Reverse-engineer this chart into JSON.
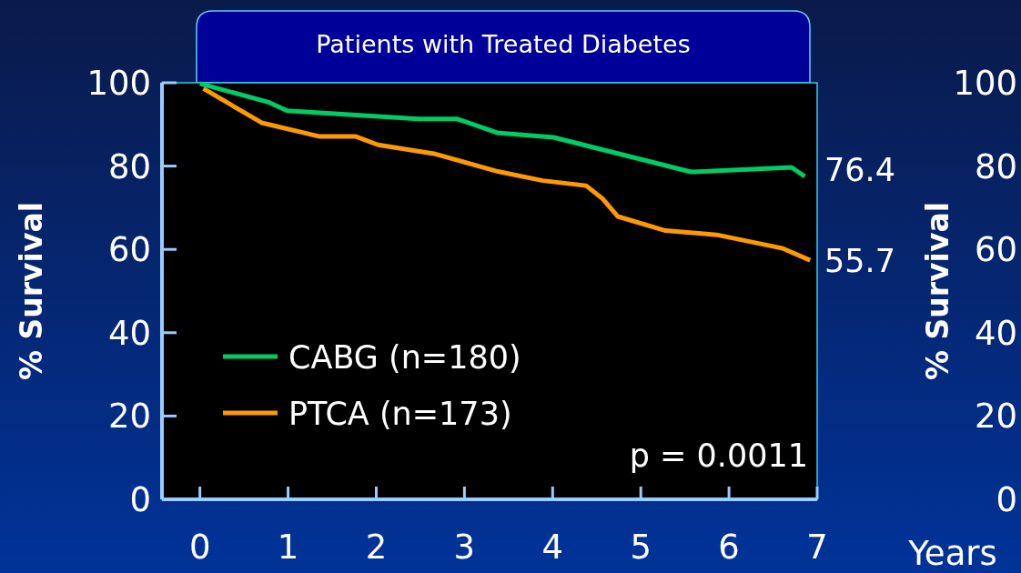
{
  "chart_data": [
    {
      "type": "line",
      "title": "Patients with Treated Diabetes",
      "xlabel": "Years",
      "ylabel": "% Survival",
      "xlim": [
        -0.43,
        7
      ],
      "ylim": [
        0,
        100
      ],
      "xticks": [
        0,
        1,
        2,
        3,
        4,
        5,
        6,
        7
      ],
      "yticks": [
        0,
        20,
        40,
        60,
        80,
        100
      ],
      "legend": "bottom left",
      "grid": false,
      "marker": "none",
      "line_style": "solid",
      "series": [
        {
          "name": "CABG (n=180)",
          "color": "#00cc66",
          "x": [
            0,
            0.77,
            0.99,
            2.48,
            2.92,
            3.37,
            4.01,
            5.57,
            6.71,
            6.86
          ],
          "values": [
            99.8,
            95.4,
            93.3,
            91.3,
            91.3,
            88,
            86.9,
            78.6,
            79.7,
            77.5
          ]
        },
        {
          "name": "PTCA (n=173)",
          "color": "#ff9900",
          "x": [
            0.04,
            0.7,
            1.36,
            1.77,
            2.02,
            2.67,
            3.38,
            3.89,
            4.38,
            4.57,
            4.74,
            5.28,
            5.86,
            6.6,
            6.92
          ],
          "values": [
            98.6,
            90.4,
            87.1,
            87.1,
            85.1,
            82.9,
            78.7,
            76.5,
            75.3,
            72.1,
            67.9,
            64.5,
            63.5,
            60.3,
            57.4
          ]
        }
      ],
      "y2label": "% Survival",
      "y2lim": [
        0,
        100
      ],
      "y2ticks": [
        0,
        20,
        40,
        60,
        80,
        100
      ],
      "annotations": [
        "76.4",
        "55.7",
        "p = 0.0011"
      ]
    }
  ]
}
